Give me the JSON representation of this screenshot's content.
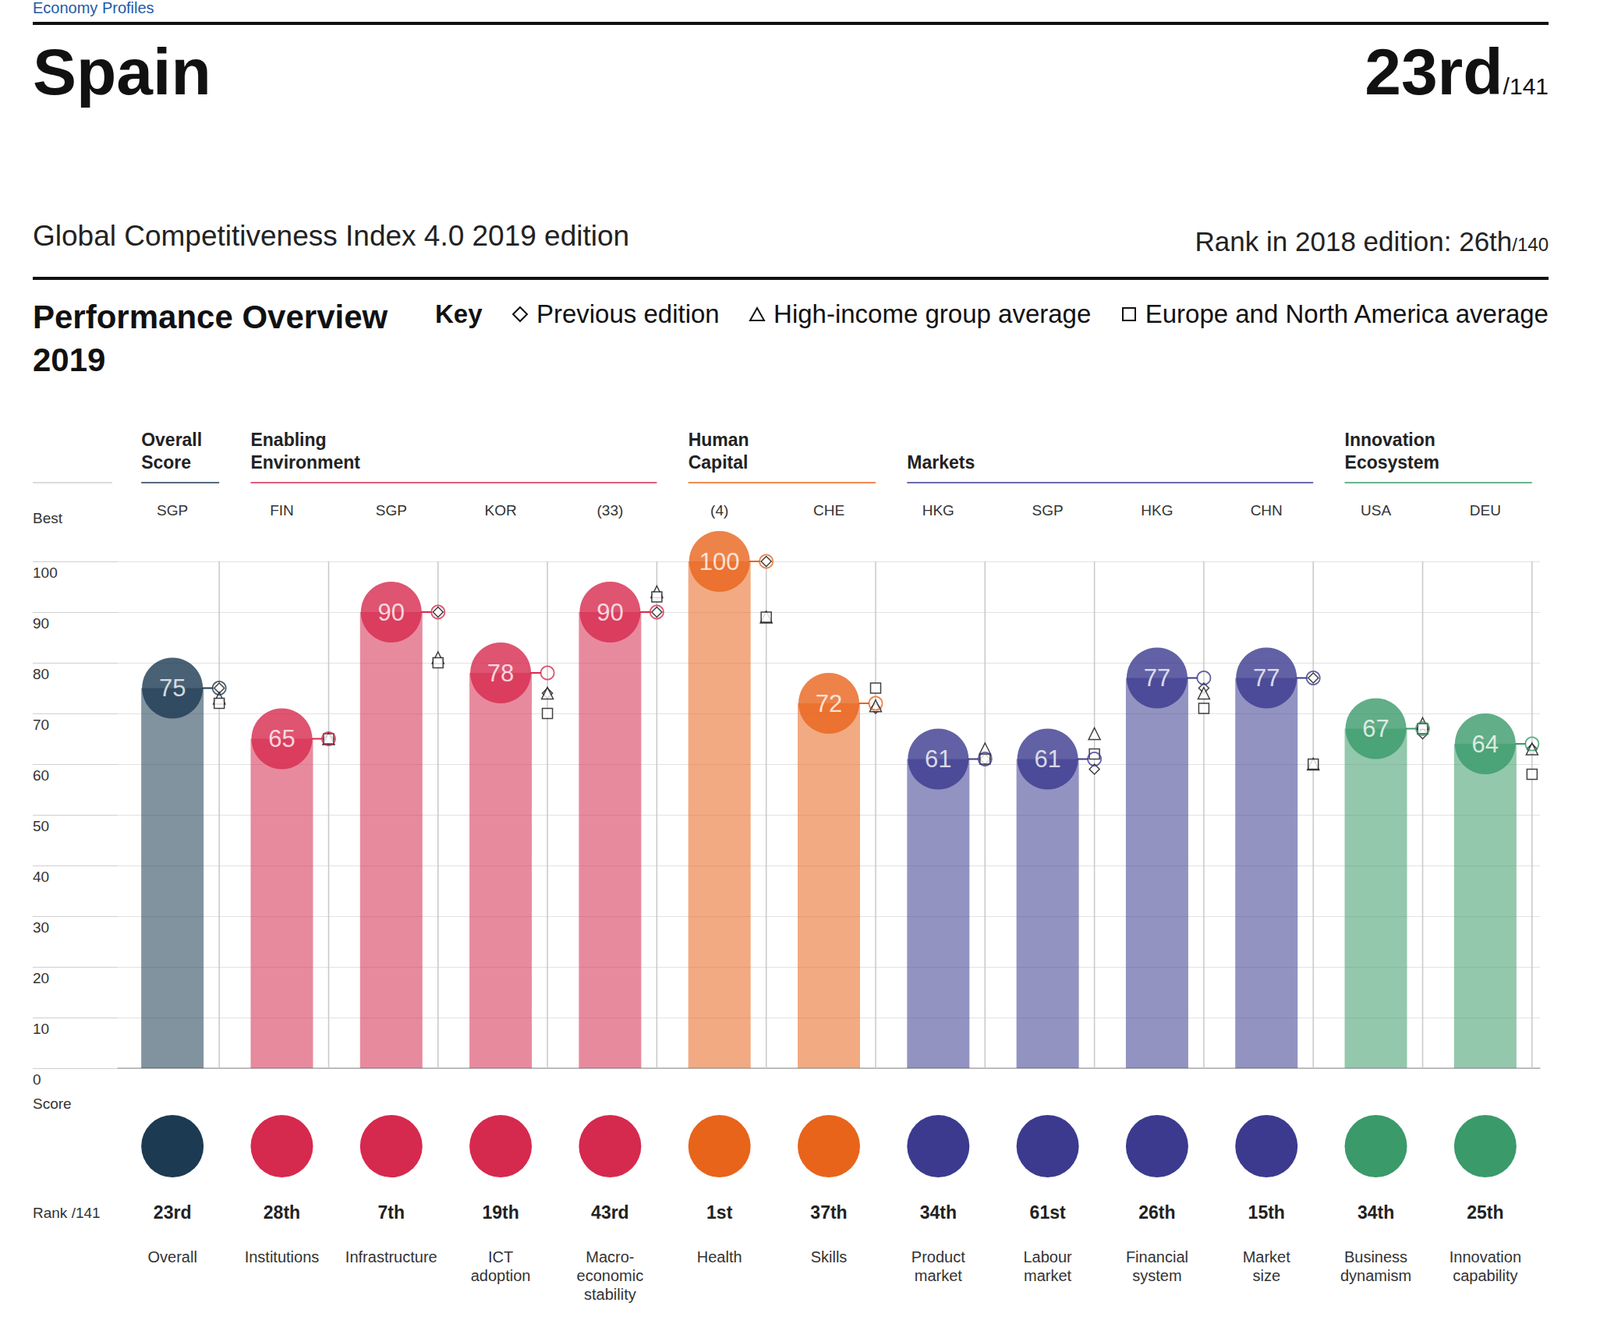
{
  "header": {
    "section": "Economy Profiles",
    "country": "Spain",
    "rank": "23rd",
    "rank_of": "/141",
    "index_edition": "Global Competitiveness Index 4.0 2019 edition",
    "previous_rank": "Rank in 2018 edition: 26th",
    "previous_rank_of": "/140",
    "key": "Key"
  },
  "chart_data": {
    "type": "bar",
    "title": "Performance Overview\n2019",
    "best_label": "Best",
    "score_label": "Score",
    "rank_label": "Rank /141",
    "groups": [
      {
        "name": "Overall\nScore",
        "pillars": 1,
        "color": "#1c3a52"
      },
      {
        "name": "Enabling\nEnvironment",
        "pillars": 4,
        "color": "#d6294e"
      },
      {
        "name": "Human\nCapital",
        "pillars": 2,
        "color": "#e8641b"
      },
      {
        "name": "Markets",
        "pillars": 4,
        "color": "#3b3a8f"
      },
      {
        "name": "Innovation\nEcosystem",
        "pillars": 2,
        "color": "#3a9a6a"
      }
    ],
    "categories": [
      "Overall",
      "Institutions",
      "Infrastructure",
      "ICT\nadoption",
      "Macro-\neconomic\nstability",
      "Health",
      "Skills",
      "Product\nmarket",
      "Labour\nmarket",
      "Financial\nsystem",
      "Market\nsize",
      "Business\ndynamism",
      "Innovation\ncapability"
    ],
    "best": [
      "SGP",
      "FIN",
      "SGP",
      "KOR",
      "(33)",
      "(4)",
      "CHE",
      "HKG",
      "SGP",
      "HKG",
      "CHN",
      "USA",
      "DEU"
    ],
    "ranks": [
      "23rd",
      "28th",
      "7th",
      "19th",
      "43rd",
      "1st",
      "37th",
      "34th",
      "61st",
      "26th",
      "15th",
      "34th",
      "25th"
    ],
    "values": [
      75,
      65,
      90,
      78,
      90,
      100,
      72,
      61,
      61,
      77,
      77,
      67,
      64
    ],
    "colors": [
      "#1c3a52",
      "#d6294e",
      "#d6294e",
      "#d6294e",
      "#d6294e",
      "#e8641b",
      "#e8641b",
      "#3b3a8f",
      "#3b3a8f",
      "#3b3a8f",
      "#3b3a8f",
      "#3a9a6a",
      "#3a9a6a"
    ],
    "series": [
      {
        "name": "Previous edition",
        "marker": "diamond",
        "values": [
          75,
          65,
          90,
          74,
          90,
          100,
          71,
          61,
          59,
          75,
          77,
          66,
          63
        ]
      },
      {
        "name": "High-income group average",
        "marker": "triangle",
        "values": [
          73,
          65,
          81,
          74,
          94,
          89,
          71.5,
          63,
          66,
          74,
          60,
          68,
          63
        ]
      },
      {
        "name": "Europe and North America average",
        "marker": "square",
        "values": [
          72,
          65,
          80,
          70,
          93,
          89,
          75,
          61,
          62,
          71,
          60,
          67,
          58
        ]
      }
    ],
    "ylim": [
      0,
      100
    ],
    "yticks": [
      0,
      10,
      20,
      30,
      40,
      50,
      60,
      70,
      80,
      90,
      100
    ],
    "grid": true,
    "data_labels": true
  }
}
